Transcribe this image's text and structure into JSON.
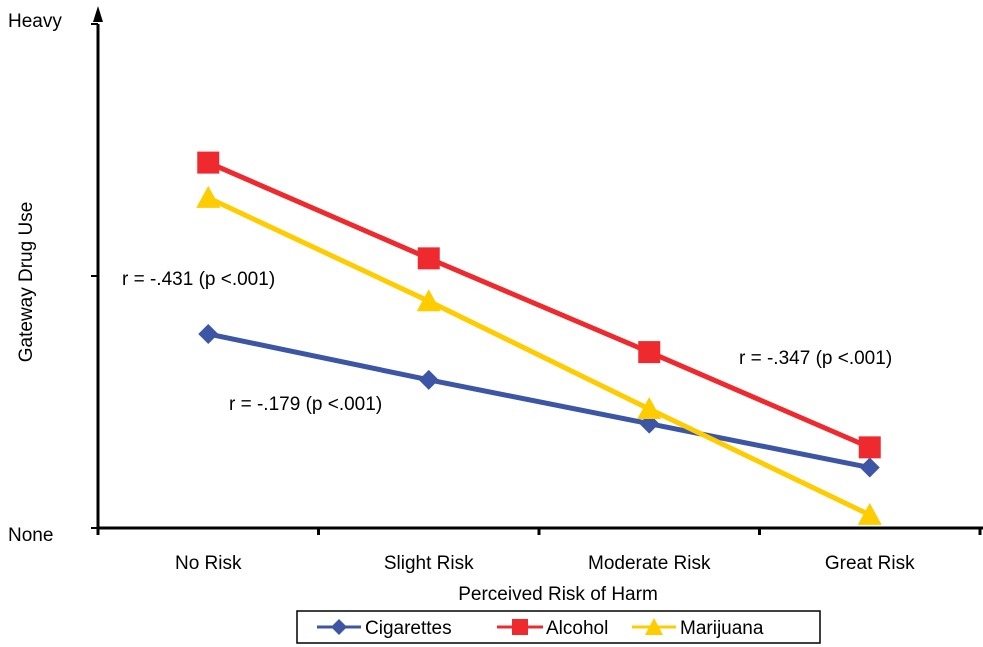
{
  "chart_data": {
    "type": "line",
    "title": "",
    "xlabel": "Perceived Risk of Harm",
    "ylabel": "Gateway Drug Use",
    "y_top_label": "Heavy",
    "y_bottom_label": "None",
    "categories": [
      "No Risk",
      "Slight Risk",
      "Moderate Risk",
      "Great Risk"
    ],
    "ylim": [
      0,
      100
    ],
    "grid": false,
    "legend_position": "bottom",
    "series": [
      {
        "name": "Cigarettes",
        "color": "#3c55a5",
        "marker": "diamond",
        "values": [
          38.5,
          29.4,
          20.7,
          12.0
        ]
      },
      {
        "name": "Alcohol",
        "color": "#ee2a2f",
        "marker": "square",
        "values": [
          72.5,
          53.5,
          34.9,
          16.0
        ]
      },
      {
        "name": "Marijuana",
        "color": "#ffcc00",
        "marker": "triangle",
        "values": [
          65.5,
          45.0,
          23.6,
          2.6
        ]
      }
    ],
    "annotations": [
      {
        "text": "r = -.431 (p <.001)"
      },
      {
        "text": "r = -.179 (p <.001)"
      },
      {
        "text": "r = -.347 (p <.001)"
      }
    ]
  }
}
